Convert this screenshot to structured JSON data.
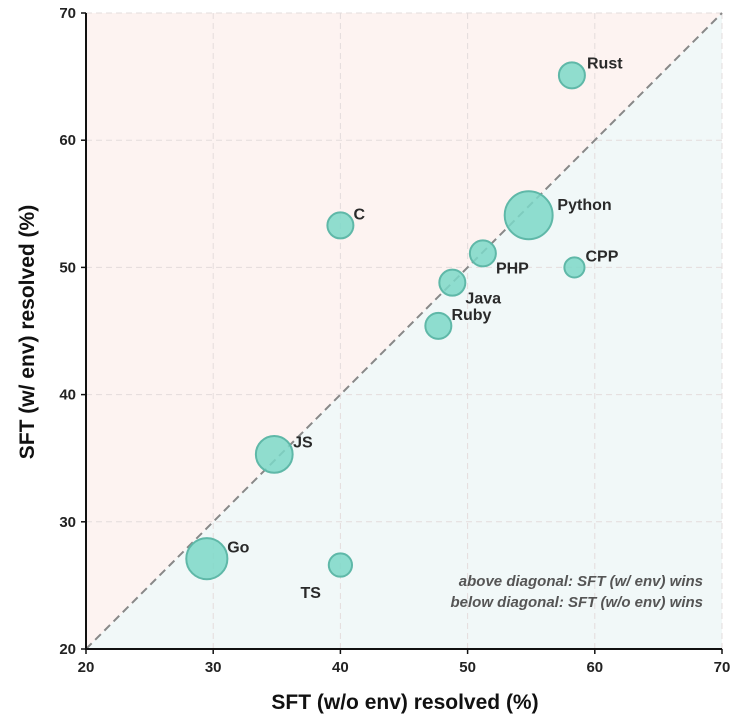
{
  "chart_data": {
    "type": "scatter",
    "title": "",
    "xlabel": "SFT (w/o env) resolved (%)",
    "ylabel": "SFT (w/ env) resolved (%)",
    "xlim": [
      20,
      70
    ],
    "ylim": [
      20,
      70
    ],
    "xticks": [
      "20",
      "30",
      "40",
      "50",
      "60",
      "70"
    ],
    "yticks": [
      "20",
      "30",
      "40",
      "50",
      "60",
      "70"
    ],
    "grid": true,
    "diagonal": true,
    "colors": {
      "point_fill": "#7dd8c8",
      "point_stroke": "#5fb8a8",
      "above_region": "#fdf3f1",
      "below_region": "#f1f8f8",
      "diagonal": "#888888",
      "grid": "#e4dcdc"
    },
    "annotations": [
      "above diagonal: SFT (w/ env) wins",
      "below diagonal: SFT (w/o env) wins"
    ],
    "points": [
      {
        "label": "Rust",
        "x": 58.2,
        "y": 65.1,
        "size": 1.0,
        "label_dx": 10,
        "label_dy": -7
      },
      {
        "label": "Python",
        "x": 54.8,
        "y": 54.1,
        "size": 3.4,
        "label_dx": 16,
        "label_dy": -5
      },
      {
        "label": "C",
        "x": 40.0,
        "y": 53.3,
        "size": 1.0,
        "label_dx": 8,
        "label_dy": -6
      },
      {
        "label": "PHP",
        "x": 51.2,
        "y": 51.1,
        "size": 1.0,
        "label_dx": 8,
        "label_dy": 20
      },
      {
        "label": "CPP",
        "x": 58.4,
        "y": 50.0,
        "size": 0.6,
        "label_dx": 8,
        "label_dy": -6
      },
      {
        "label": "Java",
        "x": 48.8,
        "y": 48.8,
        "size": 1.0,
        "label_dx": 8,
        "label_dy": 21
      },
      {
        "label": "Ruby",
        "x": 47.7,
        "y": 45.4,
        "size": 1.0,
        "label_dx": 8,
        "label_dy": -6
      },
      {
        "label": "JS",
        "x": 34.8,
        "y": 35.3,
        "size": 2.0,
        "label_dx": 10,
        "label_dy": -7
      },
      {
        "label": "Go",
        "x": 29.5,
        "y": 27.1,
        "size": 2.5,
        "label_dx": 10,
        "label_dy": -6
      },
      {
        "label": "TS",
        "x": 40.0,
        "y": 26.6,
        "size": 0.8,
        "label_dx": -44,
        "label_dy": 33
      }
    ]
  }
}
